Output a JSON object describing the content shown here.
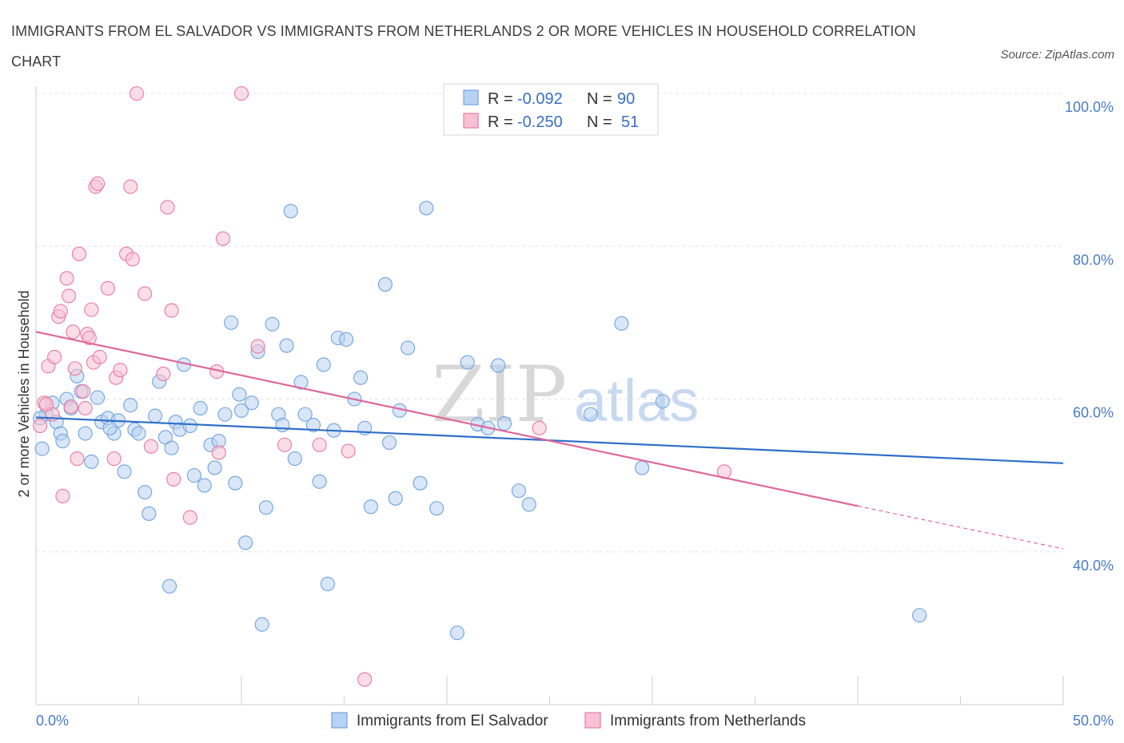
{
  "title": "IMMIGRANTS FROM EL SALVADOR VS IMMIGRANTS FROM NETHERLANDS 2 OR MORE VEHICLES IN HOUSEHOLD CORRELATION CHART",
  "source": "Source: ZipAtlas.com",
  "watermark": {
    "zip": "ZIP",
    "atlas": "atlas"
  },
  "colors": {
    "blue": "#6fa3e0",
    "blue_fill": "#b8d2f3",
    "pink": "#e87aa0",
    "pink_fill": "#f7c1d3",
    "blue_line": "#2f6fc8",
    "pink_line": "#e0679a"
  },
  "legend": {
    "blue": {
      "r_label": "R = ",
      "r_value": "-0.092",
      "n_label": "N = ",
      "n_value": "90"
    },
    "pink": {
      "r_label": "R = ",
      "r_value": "-0.250",
      "n_label": "N = ",
      "n_value": "51"
    }
  },
  "chart_data": {
    "type": "scatter",
    "ylabel": "2 or more Vehicles in Household",
    "xlim": [
      0,
      50
    ],
    "ylim": [
      20,
      100
    ],
    "x_tick_labels": [
      "0.0%",
      "50.0%"
    ],
    "y_ticks": [
      {
        "value": 100,
        "label": "100.0%"
      },
      {
        "value": 80,
        "label": "80.0%"
      },
      {
        "value": 60,
        "label": "60.0%"
      },
      {
        "value": 40,
        "label": "40.0%"
      }
    ],
    "grid": true,
    "legend_position": "top-center",
    "series": [
      {
        "name": "Immigrants from El Salvador",
        "color": "#6fa3e0",
        "trend": {
          "x0": 0,
          "y0": 57.6,
          "x1": 50,
          "y1": 51.6
        },
        "points": [
          [
            0.3,
            53.5
          ],
          [
            0.5,
            58
          ],
          [
            0.8,
            59.5
          ],
          [
            1,
            57
          ],
          [
            1.2,
            55.5
          ],
          [
            1.5,
            60
          ],
          [
            1.7,
            58.8
          ],
          [
            2,
            63
          ],
          [
            2.2,
            61
          ],
          [
            2.4,
            55.5
          ],
          [
            2.7,
            51.8
          ],
          [
            3,
            60.2
          ],
          [
            3.2,
            57
          ],
          [
            3.5,
            57.5
          ],
          [
            3.8,
            55.5
          ],
          [
            4,
            57.2
          ],
          [
            4.3,
            50.5
          ],
          [
            4.6,
            59.2
          ],
          [
            4.8,
            56
          ],
          [
            5,
            55.5
          ],
          [
            5.3,
            47.8
          ],
          [
            5.5,
            45
          ],
          [
            5.8,
            57.8
          ],
          [
            6,
            62.3
          ],
          [
            6.3,
            55
          ],
          [
            6.5,
            35.5
          ],
          [
            6.8,
            57
          ],
          [
            7,
            56
          ],
          [
            7.2,
            64.5
          ],
          [
            7.5,
            56.5
          ],
          [
            7.7,
            50
          ],
          [
            8,
            58.8
          ],
          [
            8.2,
            48.7
          ],
          [
            8.5,
            54
          ],
          [
            8.7,
            51
          ],
          [
            8.9,
            54.5
          ],
          [
            9.2,
            58
          ],
          [
            9.5,
            70
          ],
          [
            9.7,
            49
          ],
          [
            10,
            58.5
          ],
          [
            10.2,
            41.2
          ],
          [
            10.5,
            59.5
          ],
          [
            10.8,
            66.2
          ],
          [
            11,
            30.5
          ],
          [
            11.2,
            45.8
          ],
          [
            11.5,
            69.8
          ],
          [
            11.8,
            58
          ],
          [
            12,
            56.6
          ],
          [
            12.2,
            67
          ],
          [
            12.4,
            84.6
          ],
          [
            12.6,
            52.2
          ],
          [
            12.9,
            62.2
          ],
          [
            13.1,
            58
          ],
          [
            13.5,
            56.6
          ],
          [
            13.8,
            49.2
          ],
          [
            14,
            64.5
          ],
          [
            14.2,
            35.8
          ],
          [
            14.5,
            55.9
          ],
          [
            14.7,
            68
          ],
          [
            15.1,
            67.8
          ],
          [
            15.5,
            60
          ],
          [
            15.8,
            62.8
          ],
          [
            16,
            56.2
          ],
          [
            16.3,
            45.9
          ],
          [
            17,
            75
          ],
          [
            17.2,
            54.3
          ],
          [
            17.5,
            47
          ],
          [
            17.7,
            58.5
          ],
          [
            18.1,
            66.7
          ],
          [
            18.7,
            49
          ],
          [
            19,
            85
          ],
          [
            19.5,
            45.7
          ],
          [
            20.5,
            29.4
          ],
          [
            21,
            64.8
          ],
          [
            21.5,
            56.7
          ],
          [
            22,
            56.2
          ],
          [
            22.5,
            64.4
          ],
          [
            22.8,
            56.8
          ],
          [
            23.5,
            48
          ],
          [
            24,
            46.2
          ],
          [
            27,
            58
          ],
          [
            28.5,
            69.9
          ],
          [
            29.5,
            51
          ],
          [
            30.5,
            59.7
          ],
          [
            43,
            31.7
          ],
          [
            0.2,
            57.5
          ],
          [
            1.3,
            54.5
          ],
          [
            3.6,
            56.2
          ],
          [
            6.6,
            53.6
          ],
          [
            9.9,
            60.6
          ]
        ]
      },
      {
        "name": "Immigrants from Netherlands",
        "color": "#e87aa0",
        "trend": {
          "x0": 0,
          "y0": 68.8,
          "x1": 40,
          "y1": 46.0
        },
        "trend_dashed": {
          "x0": 40,
          "y0": 46.0,
          "x1": 50,
          "y1": 40.4
        },
        "points": [
          [
            0.2,
            56.5
          ],
          [
            0.4,
            59.5
          ],
          [
            0.6,
            64.3
          ],
          [
            0.8,
            58
          ],
          [
            0.9,
            65.5
          ],
          [
            1.1,
            70.8
          ],
          [
            1.2,
            71.5
          ],
          [
            1.3,
            47.3
          ],
          [
            1.5,
            75.8
          ],
          [
            1.6,
            73.5
          ],
          [
            1.8,
            68.8
          ],
          [
            1.9,
            64
          ],
          [
            2,
            52.2
          ],
          [
            2.1,
            79
          ],
          [
            2.3,
            61
          ],
          [
            2.4,
            58.8
          ],
          [
            2.5,
            68.5
          ],
          [
            2.6,
            68
          ],
          [
            2.7,
            71.7
          ],
          [
            2.8,
            64.8
          ],
          [
            2.9,
            87.8
          ],
          [
            3,
            88.2
          ],
          [
            3.1,
            65.5
          ],
          [
            3.5,
            74.5
          ],
          [
            3.8,
            52.2
          ],
          [
            3.9,
            62.8
          ],
          [
            4.1,
            63.8
          ],
          [
            4.4,
            79
          ],
          [
            4.6,
            87.8
          ],
          [
            4.7,
            78.3
          ],
          [
            4.9,
            100
          ],
          [
            5.3,
            73.8
          ],
          [
            5.6,
            53.8
          ],
          [
            6.2,
            63.3
          ],
          [
            6.4,
            85.1
          ],
          [
            6.6,
            71.6
          ],
          [
            6.7,
            49.5
          ],
          [
            7.5,
            44.5
          ],
          [
            8.8,
            63.6
          ],
          [
            8.9,
            53
          ],
          [
            9.1,
            81
          ],
          [
            10,
            100
          ],
          [
            10.8,
            66.9
          ],
          [
            12.1,
            54
          ],
          [
            13.8,
            54
          ],
          [
            15.2,
            53.2
          ],
          [
            16,
            23.3
          ],
          [
            24.5,
            56.2
          ],
          [
            33.5,
            50.5
          ],
          [
            0.5,
            59.3
          ],
          [
            1.7,
            59
          ]
        ]
      }
    ]
  },
  "bottom_legend": [
    "Immigrants from El Salvador",
    "Immigrants from Netherlands"
  ]
}
